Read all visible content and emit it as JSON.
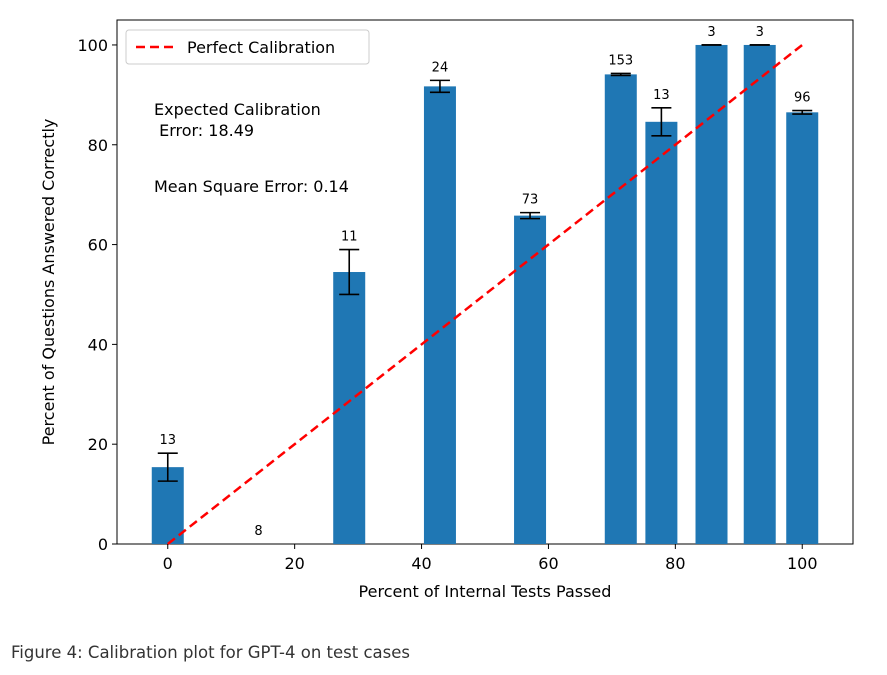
{
  "caption": "Figure 4: Calibration plot for GPT-4 on test cases",
  "chart_data": {
    "type": "bar",
    "title": "",
    "xlabel": "Percent of Internal Tests Passed",
    "ylabel": "Percent of Questions Answered Correctly",
    "xlim": [
      -8,
      108
    ],
    "ylim": [
      0,
      105
    ],
    "xticks": [
      0,
      20,
      40,
      60,
      80,
      100
    ],
    "yticks": [
      0,
      20,
      40,
      60,
      80,
      100
    ],
    "grid": false,
    "bar_color": "#1f77b4",
    "bars": [
      {
        "x": 0,
        "y": 15.4,
        "err": 2.8,
        "count": "13"
      },
      {
        "x": 14.3,
        "y": 0,
        "err": 0,
        "count": "8"
      },
      {
        "x": 28.6,
        "y": 54.5,
        "err": 4.5,
        "count": "11"
      },
      {
        "x": 42.9,
        "y": 91.7,
        "err": 1.2,
        "count": "24"
      },
      {
        "x": 57.1,
        "y": 65.8,
        "err": 0.6,
        "count": "73"
      },
      {
        "x": 71.4,
        "y": 94.1,
        "err": 0.2,
        "count": "153"
      },
      {
        "x": 77.8,
        "y": 84.6,
        "err": 2.8,
        "count": "13"
      },
      {
        "x": 85.7,
        "y": 100,
        "err": 0,
        "count": "3"
      },
      {
        "x": 93.3,
        "y": 100,
        "err": 0,
        "count": "3"
      },
      {
        "x": 100,
        "y": 86.5,
        "err": 0.35,
        "count": "96"
      }
    ],
    "reference_line": {
      "name": "Perfect Calibration",
      "from": [
        0,
        0
      ],
      "to": [
        100,
        100
      ],
      "color": "#ff0000",
      "style": "dashed"
    },
    "legend": {
      "entries": [
        "Perfect Calibration"
      ],
      "placement": "top-left"
    },
    "annotations": {
      "ece_line1": "Expected Calibration",
      "ece_line2": " Error: 18.49",
      "mse": "Mean Square Error: 0.14"
    }
  }
}
